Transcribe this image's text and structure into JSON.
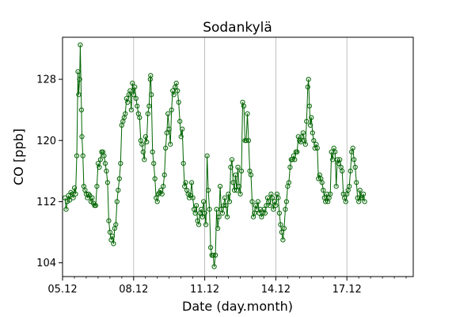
{
  "chart_data": {
    "type": "line",
    "title": "Sodankylä",
    "xlabel": "Date (day.month)",
    "ylabel": "CO [ppb]",
    "x_unit": "days since 05.12",
    "xlim": [
      0,
      14.8
    ],
    "ylim": [
      102.2,
      133.5
    ],
    "x_ticks": [
      {
        "x": 0,
        "label": "05.12"
      },
      {
        "x": 3,
        "label": "08.12"
      },
      {
        "x": 6,
        "label": "11.12"
      },
      {
        "x": 9,
        "label": "14.12"
      },
      {
        "x": 12,
        "label": "17.12"
      }
    ],
    "y_ticks": [
      {
        "y": 104,
        "label": "104"
      },
      {
        "y": 112,
        "label": "112"
      },
      {
        "y": 120,
        "label": "120"
      },
      {
        "y": 128,
        "label": "128"
      }
    ],
    "grid": {
      "x": true,
      "y": false
    },
    "series": [
      {
        "name": "CO",
        "color": "#006400",
        "marker": "circle-open",
        "points": [
          [
            0.1,
            112.5
          ],
          [
            0.15,
            111.0
          ],
          [
            0.2,
            112.0
          ],
          [
            0.25,
            112.8
          ],
          [
            0.3,
            112.2
          ],
          [
            0.35,
            113.2
          ],
          [
            0.4,
            113.0
          ],
          [
            0.45,
            112.5
          ],
          [
            0.5,
            113.8
          ],
          [
            0.55,
            113.0
          ],
          [
            0.6,
            118.0
          ],
          [
            0.65,
            129.0
          ],
          [
            0.68,
            126.0
          ],
          [
            0.72,
            128.0
          ],
          [
            0.75,
            132.5
          ],
          [
            0.8,
            124.0
          ],
          [
            0.82,
            120.5
          ],
          [
            0.86,
            118.0
          ],
          [
            0.9,
            114.0
          ],
          [
            0.95,
            113.5
          ],
          [
            1.0,
            113.0
          ],
          [
            1.05,
            112.5
          ],
          [
            1.1,
            113.0
          ],
          [
            1.15,
            112.8
          ],
          [
            1.2,
            112.0
          ],
          [
            1.25,
            112.5
          ],
          [
            1.3,
            111.8
          ],
          [
            1.35,
            111.5
          ],
          [
            1.4,
            111.5
          ],
          [
            1.45,
            114.0
          ],
          [
            1.5,
            117.0
          ],
          [
            1.55,
            116.5
          ],
          [
            1.6,
            117.5
          ],
          [
            1.65,
            118.5
          ],
          [
            1.7,
            118.5
          ],
          [
            1.75,
            118.0
          ],
          [
            1.8,
            117.0
          ],
          [
            1.85,
            116.0
          ],
          [
            1.9,
            114.5
          ],
          [
            1.95,
            109.5
          ],
          [
            2.0,
            108.0
          ],
          [
            2.05,
            107.0
          ],
          [
            2.1,
            107.5
          ],
          [
            2.15,
            106.5
          ],
          [
            2.2,
            108.5
          ],
          [
            2.25,
            109.0
          ],
          [
            2.3,
            112.0
          ],
          [
            2.35,
            113.5
          ],
          [
            2.4,
            115.0
          ],
          [
            2.45,
            117.0
          ],
          [
            2.5,
            122.0
          ],
          [
            2.55,
            122.5
          ],
          [
            2.6,
            123.0
          ],
          [
            2.65,
            123.5
          ],
          [
            2.7,
            125.5
          ],
          [
            2.75,
            125.0
          ],
          [
            2.8,
            126.0
          ],
          [
            2.85,
            126.5
          ],
          [
            2.9,
            124.0
          ],
          [
            2.95,
            127.5
          ],
          [
            3.0,
            126.0
          ],
          [
            3.05,
            127.0
          ],
          [
            3.1,
            125.5
          ],
          [
            3.15,
            124.5
          ],
          [
            3.2,
            123.5
          ],
          [
            3.25,
            123.0
          ],
          [
            3.3,
            120.0
          ],
          [
            3.35,
            119.5
          ],
          [
            3.4,
            118.5
          ],
          [
            3.45,
            117.5
          ],
          [
            3.5,
            120.5
          ],
          [
            3.55,
            119.8
          ],
          [
            3.6,
            123.5
          ],
          [
            3.65,
            124.5
          ],
          [
            3.7,
            128.0
          ],
          [
            3.72,
            128.5
          ],
          [
            3.75,
            126.0
          ],
          [
            3.8,
            118.5
          ],
          [
            3.85,
            117.0
          ],
          [
            3.9,
            115.0
          ],
          [
            3.95,
            112.5
          ],
          [
            4.0,
            112.0
          ],
          [
            4.05,
            113.0
          ],
          [
            4.1,
            113.2
          ],
          [
            4.15,
            113.5
          ],
          [
            4.2,
            113.0
          ],
          [
            4.25,
            114.0
          ],
          [
            4.3,
            115.5
          ],
          [
            4.35,
            119.0
          ],
          [
            4.4,
            121.0
          ],
          [
            4.45,
            123.5
          ],
          [
            4.5,
            121.5
          ],
          [
            4.55,
            119.5
          ],
          [
            4.6,
            124.0
          ],
          [
            4.65,
            126.5
          ],
          [
            4.7,
            126.0
          ],
          [
            4.75,
            127.0
          ],
          [
            4.8,
            127.5
          ],
          [
            4.85,
            126.5
          ],
          [
            4.9,
            125.0
          ],
          [
            4.95,
            122.5
          ],
          [
            5.0,
            120.5
          ],
          [
            5.05,
            121.5
          ],
          [
            5.1,
            117.0
          ],
          [
            5.15,
            114.0
          ],
          [
            5.2,
            114.5
          ],
          [
            5.25,
            113.5
          ],
          [
            5.3,
            113.0
          ],
          [
            5.35,
            112.5
          ],
          [
            5.4,
            112.8
          ],
          [
            5.45,
            114.5
          ],
          [
            5.5,
            112.5
          ],
          [
            5.55,
            111.0
          ],
          [
            5.6,
            110.5
          ],
          [
            5.65,
            111.5
          ],
          [
            5.7,
            109.5
          ],
          [
            5.75,
            109.0
          ],
          [
            5.8,
            110.5
          ],
          [
            5.85,
            111.0
          ],
          [
            5.9,
            110.0
          ],
          [
            5.95,
            112.0
          ],
          [
            6.0,
            110.5
          ],
          [
            6.05,
            109.0
          ],
          [
            6.1,
            118.0
          ],
          [
            6.15,
            113.5
          ],
          [
            6.2,
            111.0
          ],
          [
            6.25,
            106.0
          ],
          [
            6.3,
            105.0
          ],
          [
            6.35,
            105.0
          ],
          [
            6.4,
            103.5
          ],
          [
            6.45,
            105.0
          ],
          [
            6.5,
            111.0
          ],
          [
            6.55,
            108.5
          ],
          [
            6.6,
            110.0
          ],
          [
            6.65,
            114.0
          ],
          [
            6.7,
            111.0
          ],
          [
            6.75,
            110.5
          ],
          [
            6.8,
            111.5
          ],
          [
            6.85,
            112.5
          ],
          [
            6.9,
            111.5
          ],
          [
            6.95,
            110.0
          ],
          [
            7.0,
            113.0
          ],
          [
            7.05,
            112.0
          ],
          [
            7.1,
            116.5
          ],
          [
            7.15,
            117.5
          ],
          [
            7.2,
            114.5
          ],
          [
            7.25,
            113.5
          ],
          [
            7.3,
            115.5
          ],
          [
            7.35,
            113.5
          ],
          [
            7.4,
            116.5
          ],
          [
            7.45,
            114.0
          ],
          [
            7.5,
            113.0
          ],
          [
            7.55,
            116.0
          ],
          [
            7.6,
            125.0
          ],
          [
            7.65,
            124.5
          ],
          [
            7.7,
            120.0
          ],
          [
            7.75,
            120.0
          ],
          [
            7.8,
            123.5
          ],
          [
            7.85,
            120.0
          ],
          [
            7.9,
            116.0
          ],
          [
            7.95,
            115.5
          ],
          [
            8.0,
            112.0
          ],
          [
            8.05,
            110.0
          ],
          [
            8.1,
            110.5
          ],
          [
            8.15,
            111.5
          ],
          [
            8.2,
            111.0
          ],
          [
            8.25,
            112.0
          ],
          [
            8.3,
            110.5
          ],
          [
            8.35,
            111.0
          ],
          [
            8.4,
            110.0
          ],
          [
            8.45,
            110.5
          ],
          [
            8.5,
            111.0
          ],
          [
            8.55,
            110.5
          ],
          [
            8.6,
            111.5
          ],
          [
            8.65,
            112.5
          ],
          [
            8.7,
            112.0
          ],
          [
            8.75,
            111.5
          ],
          [
            8.8,
            113.0
          ],
          [
            8.85,
            112.5
          ],
          [
            8.9,
            111.0
          ],
          [
            8.95,
            112.0
          ],
          [
            9.0,
            111.5
          ],
          [
            9.05,
            113.0
          ],
          [
            9.1,
            112.5
          ],
          [
            9.15,
            110.5
          ],
          [
            9.2,
            109.0
          ],
          [
            9.25,
            108.0
          ],
          [
            9.3,
            107.0
          ],
          [
            9.35,
            108.5
          ],
          [
            9.4,
            111.0
          ],
          [
            9.45,
            112.0
          ],
          [
            9.5,
            114.0
          ],
          [
            9.55,
            114.5
          ],
          [
            9.6,
            116.5
          ],
          [
            9.65,
            117.5
          ],
          [
            9.7,
            117.5
          ],
          [
            9.75,
            118.0
          ],
          [
            9.8,
            117.5
          ],
          [
            9.85,
            118.5
          ],
          [
            9.9,
            118.5
          ],
          [
            9.95,
            120.5
          ],
          [
            10.0,
            120.0
          ],
          [
            10.05,
            119.8
          ],
          [
            10.1,
            120.5
          ],
          [
            10.15,
            121.0
          ],
          [
            10.2,
            120.0
          ],
          [
            10.25,
            119.5
          ],
          [
            10.3,
            122.5
          ],
          [
            10.35,
            127.0
          ],
          [
            10.38,
            128.0
          ],
          [
            10.42,
            124.5
          ],
          [
            10.46,
            122.0
          ],
          [
            10.5,
            123.0
          ],
          [
            10.55,
            121.0
          ],
          [
            10.6,
            120.0
          ],
          [
            10.65,
            119.0
          ],
          [
            10.7,
            119.5
          ],
          [
            10.75,
            119.0
          ],
          [
            10.8,
            115.0
          ],
          [
            10.85,
            115.5
          ],
          [
            10.9,
            115.0
          ],
          [
            10.95,
            114.5
          ],
          [
            11.0,
            113.5
          ],
          [
            11.05,
            112.5
          ],
          [
            11.1,
            112.0
          ],
          [
            11.15,
            113.0
          ],
          [
            11.2,
            112.0
          ],
          [
            11.25,
            112.5
          ],
          [
            11.3,
            113.0
          ],
          [
            11.35,
            118.5
          ],
          [
            11.4,
            117.5
          ],
          [
            11.45,
            119.0
          ],
          [
            11.5,
            118.5
          ],
          [
            11.55,
            114.0
          ],
          [
            11.6,
            117.5
          ],
          [
            11.65,
            117.0
          ],
          [
            11.7,
            117.5
          ],
          [
            11.75,
            116.5
          ],
          [
            11.8,
            116.0
          ],
          [
            11.85,
            113.0
          ],
          [
            11.9,
            112.5
          ],
          [
            11.95,
            112.0
          ],
          [
            12.0,
            113.0
          ],
          [
            12.05,
            113.5
          ],
          [
            12.1,
            114.0
          ],
          [
            12.15,
            116.0
          ],
          [
            12.2,
            118.5
          ],
          [
            12.25,
            119.0
          ],
          [
            12.3,
            117.5
          ],
          [
            12.35,
            116.5
          ],
          [
            12.4,
            114.5
          ],
          [
            12.45,
            112.5
          ],
          [
            12.5,
            112.0
          ],
          [
            12.55,
            113.5
          ],
          [
            12.6,
            112.5
          ],
          [
            12.65,
            112.5
          ],
          [
            12.7,
            113.0
          ],
          [
            12.75,
            112.0
          ]
        ]
      }
    ]
  }
}
